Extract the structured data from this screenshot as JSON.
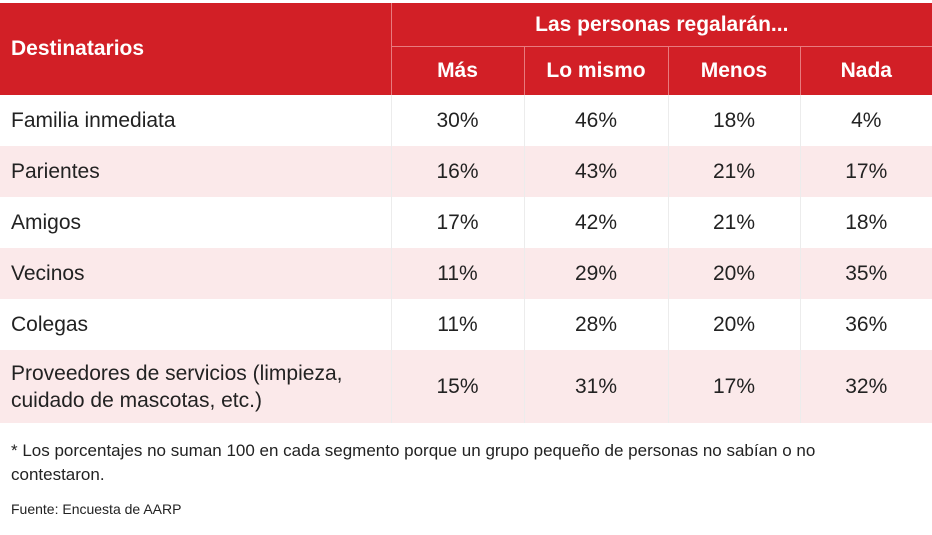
{
  "header": {
    "recipients_label": "Destinatarios",
    "group_label": "Las personas regalarán...",
    "columns": [
      "Más",
      "Lo mismo",
      "Menos",
      "Nada"
    ]
  },
  "rows": [
    {
      "name": "Familia inmediata",
      "values": [
        "30%",
        "46%",
        "18%",
        "4%"
      ]
    },
    {
      "name": "Parientes",
      "values": [
        "16%",
        "43%",
        "21%",
        "17%"
      ]
    },
    {
      "name": "Amigos",
      "values": [
        "17%",
        "42%",
        "21%",
        "18%"
      ]
    },
    {
      "name": "Vecinos",
      "values": [
        "11%",
        "29%",
        "20%",
        "35%"
      ]
    },
    {
      "name": "Colegas",
      "values": [
        "11%",
        "28%",
        "20%",
        "36%"
      ]
    },
    {
      "name_line1": "Proveedores de servicios (limpieza,",
      "name_line2": "cuidado de mascotas, etc.)",
      "values": [
        "15%",
        "31%",
        "17%",
        "32%"
      ]
    }
  ],
  "footnote": "* Los porcentajes no suman 100 en cada segmento porque un grupo pequeño de personas no sabían o no contestaron.",
  "source": "Fuente: Encuesta de AARP",
  "colors": {
    "header_bg": "#d21f26",
    "stripe_bg": "#fbe9ea"
  }
}
